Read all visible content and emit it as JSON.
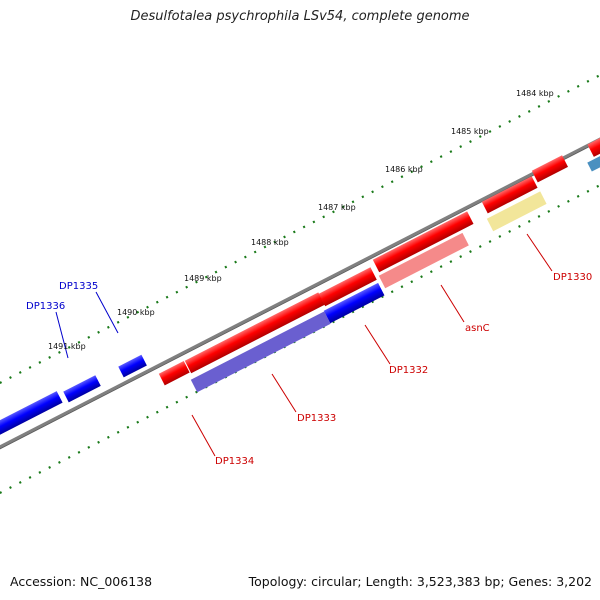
{
  "title": "Desulfotalea psychrophila LSv54, complete genome",
  "footer": {
    "accession": "Accession: NC_006138",
    "summary": "Topology: circular; Length: 3,523,383 bp; Genes: 3,202"
  },
  "kbp_labels": [
    "1484 kbp",
    "1485 kbp",
    "1486 kbp",
    "1487 kbp",
    "1488 kbp",
    "1489 kbp",
    "1490 kbp",
    "1491 kbp"
  ],
  "gene_labels": {
    "dp1330": "DP1330",
    "asnc": "asnC",
    "dp1332": "DP1332",
    "dp1333": "DP1333",
    "dp1334": "DP1334",
    "dp1335": "DP1335",
    "dp1336": "DP1336"
  },
  "colors": {
    "forward_gene": "#ff0000",
    "reverse_gene": "#0000ff",
    "reverse_cds_light": "#6a5fd0",
    "asnc_band": "#f58a8a",
    "yellow_band": "#f2e69a",
    "steelblue_band": "#4a90c0",
    "backbone": "#808080",
    "tick": "#1a7a1a",
    "forward_label": "#cc0000",
    "reverse_label": "#0000cc"
  }
}
